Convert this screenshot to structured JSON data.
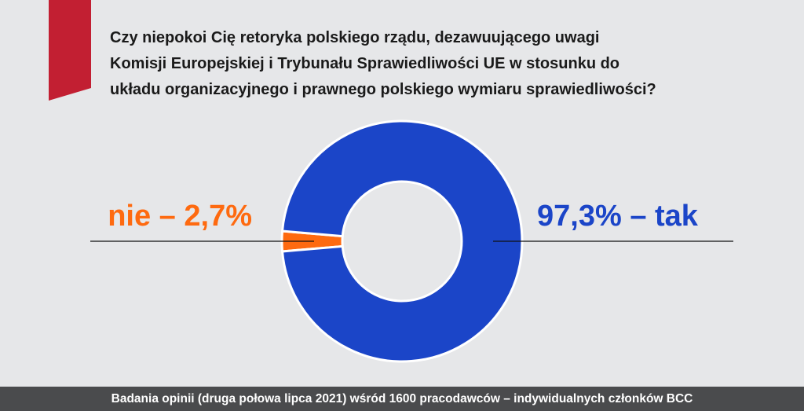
{
  "question": "Czy niepokoi Cię retoryka polskiego rządu, dezawuującego uwagi\nKomisji Europejskiej i Trybunału Sprawiedliwości UE w stosunku do\nukładu organizacyjnego i prawnego polskiego wymiaru sprawiedliwości?",
  "footer": "Badania opinii (druga połowa lipca 2021) wśród 1600 pracodawców – indywidualnych członków BCC",
  "colors": {
    "background": "#e6e7e9",
    "ribbon": "#c21f32",
    "yes": "#1b45c8",
    "no": "#fe6a10",
    "leader": "#111111",
    "footer_bg": "#4a4b4d"
  },
  "chart_data": {
    "type": "pie",
    "style": "donut",
    "slices": [
      {
        "label": "tak",
        "value": 97.3,
        "display": "97,3%",
        "color": "#1b45c8"
      },
      {
        "label": "nie",
        "value": 2.7,
        "display": "2,7%",
        "color": "#fe6a10"
      }
    ],
    "labels": {
      "left": {
        "name": "nie",
        "value": "2,7%"
      },
      "right": {
        "name": "tak",
        "value": "97,3%"
      },
      "dash": "–"
    }
  }
}
